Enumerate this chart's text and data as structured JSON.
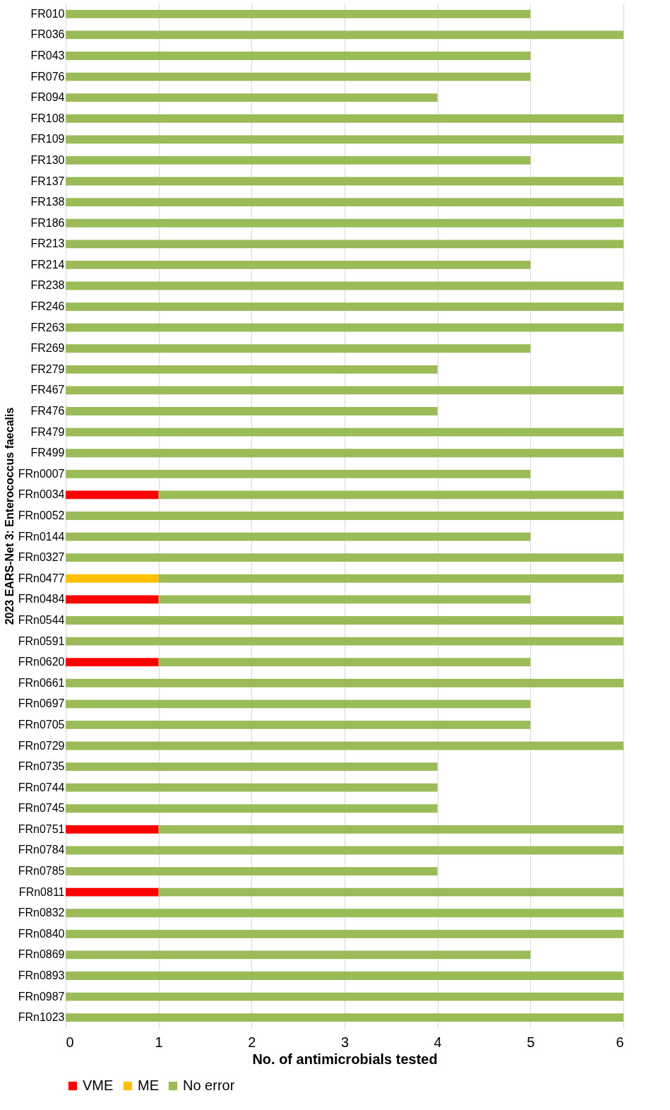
{
  "chart_data": {
    "type": "bar",
    "orientation": "horizontal",
    "stacked": true,
    "xlabel": "No. of antimicrobials tested",
    "ylabel": "2023 EARS-Net 3: Enterococcus faecalis",
    "categories": [
      "FR010",
      "FR036",
      "FR043",
      "FR076",
      "FR094",
      "FR108",
      "FR109",
      "FR130",
      "FR137",
      "FR138",
      "FR186",
      "FR213",
      "FR214",
      "FR238",
      "FR246",
      "FR263",
      "FR269",
      "FR279",
      "FR467",
      "FR476",
      "FR479",
      "FR499",
      "FRn0007",
      "FRn0034",
      "FRn0052",
      "FRn0144",
      "FRn0327",
      "FRn0477",
      "FRn0484",
      "FRn0544",
      "FRn0591",
      "FRn0620",
      "FRn0661",
      "FRn0697",
      "FRn0705",
      "FRn0729",
      "FRn0735",
      "FRn0744",
      "FRn0745",
      "FRn0751",
      "FRn0784",
      "FRn0785",
      "FRn0811",
      "FRn0832",
      "FRn0840",
      "FRn0869",
      "FRn0893",
      "FRn0987",
      "FRn1023"
    ],
    "series": [
      {
        "name": "VME",
        "color": "#ff0000",
        "values": [
          null,
          null,
          null,
          null,
          null,
          null,
          null,
          null,
          null,
          null,
          null,
          null,
          null,
          null,
          null,
          null,
          null,
          null,
          null,
          null,
          null,
          null,
          null,
          1,
          null,
          null,
          null,
          null,
          1,
          null,
          null,
          1,
          null,
          null,
          null,
          null,
          null,
          null,
          null,
          1,
          null,
          null,
          1,
          null,
          null,
          null,
          null,
          null,
          null
        ]
      },
      {
        "name": "ME",
        "color": "#ffc000",
        "values": [
          null,
          null,
          null,
          null,
          null,
          null,
          null,
          null,
          null,
          null,
          null,
          null,
          null,
          null,
          null,
          null,
          null,
          null,
          null,
          null,
          null,
          null,
          null,
          null,
          null,
          null,
          null,
          1,
          null,
          null,
          null,
          null,
          null,
          null,
          null,
          null,
          null,
          null,
          null,
          null,
          null,
          null,
          null,
          null,
          null,
          null,
          null,
          null,
          null
        ]
      },
      {
        "name": "No error",
        "color": "#9bbb59",
        "values": [
          5,
          6,
          5,
          5,
          4,
          6,
          6,
          5,
          6,
          6,
          6,
          6,
          5,
          6,
          6,
          6,
          5,
          4,
          6,
          4,
          6,
          6,
          5,
          5,
          6,
          5,
          6,
          5,
          4,
          6,
          6,
          4,
          6,
          5,
          5,
          6,
          4,
          4,
          4,
          5,
          6,
          4,
          5,
          6,
          6,
          5,
          6,
          6,
          6
        ]
      }
    ],
    "xlim": [
      0,
      6
    ],
    "xticks": [
      0,
      1,
      2,
      3,
      4,
      5,
      6
    ],
    "grid": "x",
    "legend": "bottom"
  }
}
